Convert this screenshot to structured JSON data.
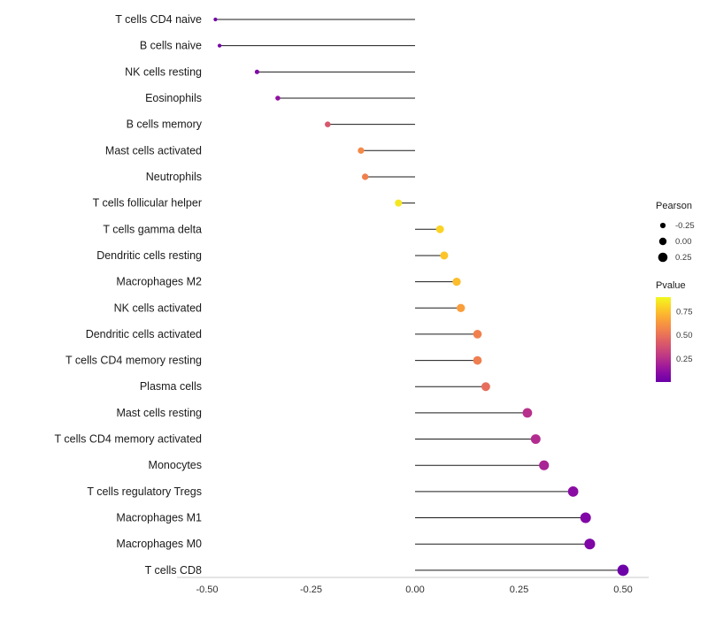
{
  "chart_data": {
    "type": "lollipop",
    "title": "",
    "xlabel": "",
    "ylabel": "",
    "xlim": [
      -0.5,
      0.5
    ],
    "x_ticks": [
      "-0.50",
      "-0.25",
      "0.00",
      "0.25",
      "0.50"
    ],
    "x_tick_values": [
      -0.5,
      -0.25,
      0.0,
      0.25,
      0.5
    ],
    "categories": [
      "T cells CD4 naive",
      "B cells naive",
      "NK cells resting",
      "Eosinophils",
      "B cells memory",
      "Mast cells activated",
      "Neutrophils",
      "T cells follicular helper",
      "T cells gamma delta",
      "Dendritic cells resting",
      "Macrophages M2",
      "NK cells activated",
      "Dendritic cells activated",
      "T cells CD4 memory resting",
      "Plasma cells",
      "Mast cells resting",
      "T cells CD4 memory activated",
      "Monocytes",
      "T cells regulatory Tregs",
      "Macrophages M1",
      "Macrophages M0",
      "T cells CD8"
    ],
    "series": [
      {
        "name": "Pearson",
        "values": [
          -0.48,
          -0.47,
          -0.38,
          -0.33,
          -0.21,
          -0.13,
          -0.12,
          -0.04,
          0.06,
          0.07,
          0.1,
          0.11,
          0.15,
          0.15,
          0.17,
          0.27,
          0.29,
          0.31,
          0.38,
          0.41,
          0.42,
          0.5
        ]
      },
      {
        "name": "Pvalue",
        "values": [
          0.02,
          0.03,
          0.07,
          0.12,
          0.4,
          0.58,
          0.55,
          0.85,
          0.8,
          0.76,
          0.74,
          0.65,
          0.55,
          0.54,
          0.48,
          0.25,
          0.23,
          0.2,
          0.1,
          0.07,
          0.06,
          0.01
        ]
      }
    ],
    "legend_position": "right",
    "grid": false,
    "legend": {
      "size_legend": {
        "title": "Pearson",
        "entries": [
          "-0.25",
          "0.00",
          "0.25"
        ],
        "entry_values": [
          -0.25,
          0.0,
          0.25
        ]
      },
      "color_legend": {
        "title": "Pvalue",
        "ticks": [
          "0.75",
          "0.50",
          "0.25"
        ],
        "tick_values": [
          0.75,
          0.5,
          0.25
        ],
        "range": [
          0.0,
          0.9
        ],
        "colormap": "plasma",
        "top_color": "#f0f921",
        "bottom_color": "#6a00a8"
      }
    },
    "colors": {
      "segment": "#1a1a1a",
      "axis_line": "#c9c9c9",
      "legend_dot": "#000000"
    }
  }
}
